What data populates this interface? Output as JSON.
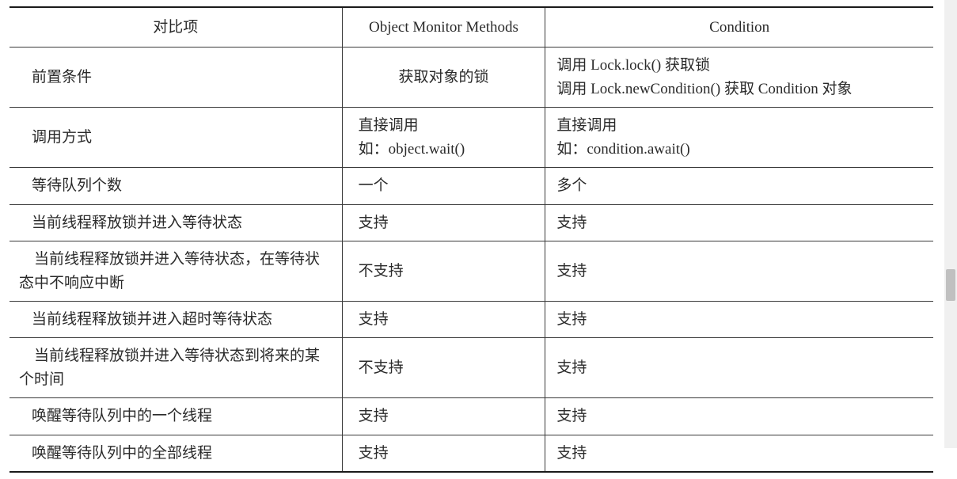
{
  "table": {
    "type": "table",
    "colors": {
      "border": "#3a3a3a",
      "border_heavy": "#1a1a1a",
      "text": "#2a2a2a",
      "background": "#ffffff",
      "scrollbar_track": "#f0f0f0",
      "scrollbar_thumb": "#c0c0c0"
    },
    "font": {
      "family": "SimSun / Times",
      "size_pt": 14
    },
    "column_widths_pct": [
      36,
      22,
      42
    ],
    "columns": [
      "对比项",
      "Object Monitor Methods",
      "Condition"
    ],
    "rows": [
      {
        "a": "前置条件",
        "a_align": "indent",
        "b": "获取对象的锁",
        "b_align": "center",
        "c": "调用 Lock.lock() 获取锁\n调用 Lock.newCondition() 获取 Condition 对象"
      },
      {
        "a": "调用方式",
        "a_align": "indent",
        "b": "直接调用\n如：object.wait()",
        "b_align": "left",
        "c": "直接调用\n如：condition.await()"
      },
      {
        "a": "等待队列个数",
        "a_align": "indent",
        "b": "一个",
        "b_align": "left",
        "c": "多个"
      },
      {
        "a": "当前线程释放锁并进入等待状态",
        "a_align": "indent",
        "b": "支持",
        "b_align": "left",
        "c": "支持"
      },
      {
        "a": "当前线程释放锁并进入等待状态，在等待状态中不响应中断",
        "a_align": "wrap",
        "b": "不支持",
        "b_align": "left",
        "c": "支持"
      },
      {
        "a": "当前线程释放锁并进入超时等待状态",
        "a_align": "indent",
        "b": "支持",
        "b_align": "left",
        "c": "支持"
      },
      {
        "a": "当前线程释放锁并进入等待状态到将来的某个时间",
        "a_align": "wrap",
        "b": "不支持",
        "b_align": "left",
        "c": "支持"
      },
      {
        "a": "唤醒等待队列中的一个线程",
        "a_align": "indent",
        "b": "支持",
        "b_align": "left",
        "c": "支持"
      },
      {
        "a": "唤醒等待队列中的全部线程",
        "a_align": "indent",
        "b": "支持",
        "b_align": "left",
        "c": "支持"
      }
    ]
  }
}
